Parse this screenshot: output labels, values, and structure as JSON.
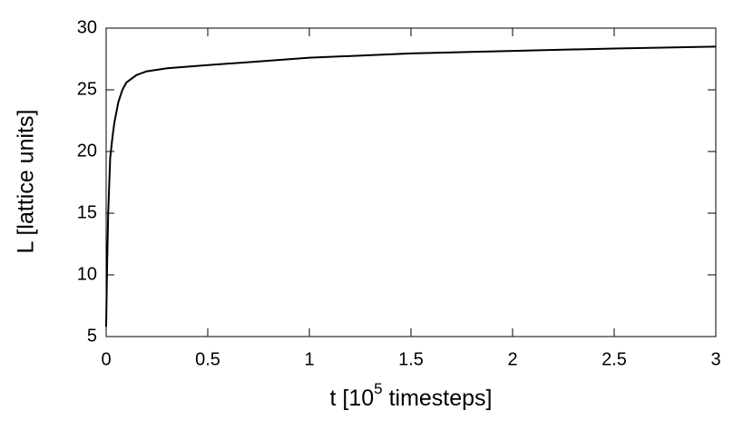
{
  "chart_data": {
    "type": "line",
    "xlabel_parts": [
      "t [10",
      "5",
      " timesteps]"
    ],
    "ylabel": "L [lattice units]",
    "x": [
      0,
      0.002,
      0.005,
      0.01,
      0.02,
      0.03,
      0.04,
      0.06,
      0.08,
      0.1,
      0.15,
      0.2,
      0.3,
      0.5,
      0.75,
      1,
      1.5,
      2,
      2.5,
      3
    ],
    "series": [
      {
        "color": "#000000",
        "values": [
          5.8,
          8,
          11,
          15,
          19.5,
          21,
          22.3,
          24,
          25,
          25.6,
          26.2,
          26.5,
          26.75,
          27,
          27.3,
          27.6,
          27.95,
          28.15,
          28.35,
          28.5
        ]
      }
    ],
    "xlim": [
      0,
      3
    ],
    "xticks": [
      0,
      0.5,
      1,
      1.5,
      2,
      2.5,
      3
    ],
    "ylim": [
      5,
      30
    ],
    "yticks": [
      5,
      10,
      15,
      20,
      25,
      30
    ],
    "grid": false
  }
}
